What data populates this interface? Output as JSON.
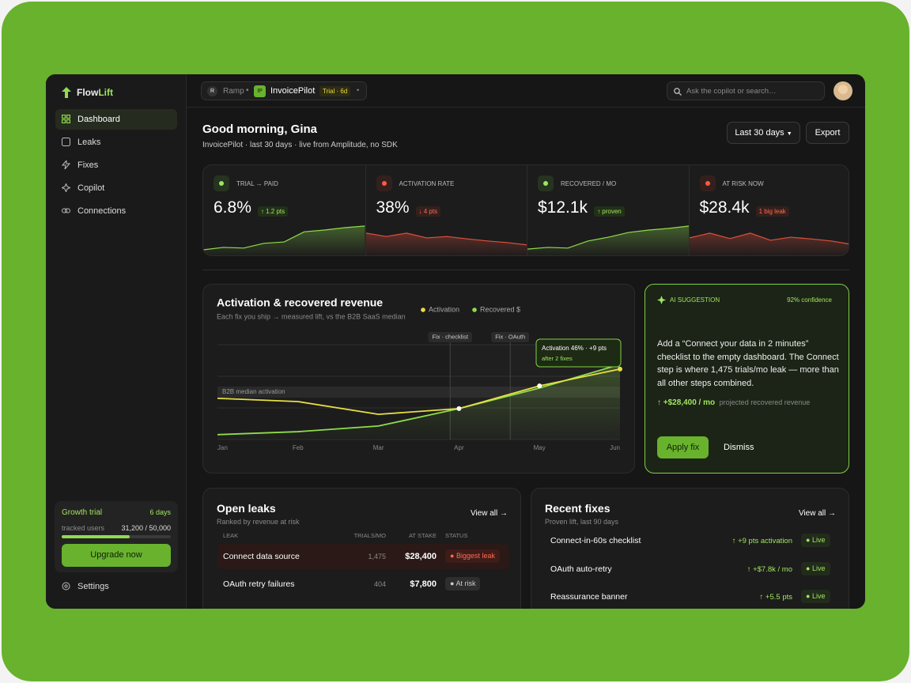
{
  "brand": {
    "name_a": "Flow",
    "name_b": "Lift"
  },
  "nav": [
    "Dashboard",
    "Leaks",
    "Fixes",
    "Copilot",
    "Connections"
  ],
  "trial": {
    "title": "Growth trial",
    "days": "6 days",
    "label": "tracked users",
    "usage": "31,200 / 50,000",
    "button": "Upgrade now"
  },
  "settings": "Settings",
  "topbar": {
    "org_initial": "R",
    "org": "Ramp",
    "app_initial": "IP",
    "app": "InvoicePilot",
    "trial_badge": "Trial · 6d",
    "search": "Ask the copilot or search…"
  },
  "header": {
    "greeting": "Good morning, Gina",
    "subtitle": "InvoicePilot · last 30 days · live from Amplitude, no SDK",
    "range": "Last 30 days",
    "export": "Export"
  },
  "kpi_scale": [
    0,
    10
  ],
  "kpis": [
    {
      "label": "TRIAL → PAID",
      "value": "6.8%",
      "delta": "↑ 1.2 pts",
      "trend": "up",
      "spark": [
        2.1,
        2.8,
        2.6,
        4,
        4.4,
        7.4,
        7.9,
        8.6,
        9.1
      ]
    },
    {
      "label": "ACTIVATION RATE",
      "value": "38%",
      "delta": "↓ 4 pts",
      "trend": "down",
      "spark": [
        7,
        6,
        7,
        5.6,
        6,
        5.3,
        4.7,
        4.2,
        3.5
      ]
    },
    {
      "label": "RECOVERED / MO",
      "value": "$12.1k",
      "delta": "↑ proven",
      "trend": "up",
      "spark": [
        2.3,
        2.8,
        2.6,
        4.7,
        5.8,
        7.2,
        7.9,
        8.4,
        9.1
      ]
    },
    {
      "label": "AT RISK NOW",
      "value": "$28.4k",
      "delta": "1 big leak",
      "trend": "down",
      "spark": [
        5.6,
        7,
        5.4,
        7,
        4.9,
        5.8,
        5.3,
        4.7,
        3.7
      ]
    }
  ],
  "chart_data": {
    "type": "line",
    "title": "Activation & recovered revenue",
    "subtitle": "Each fix you ship → measured lift, vs the B2B SaaS median",
    "categories": [
      "Jan",
      "Feb",
      "Mar",
      "Apr",
      "May",
      "Jun"
    ],
    "series": [
      {
        "name": "Activation",
        "color": "#e6de45",
        "values": [
          35.2,
          34,
          29.3,
          31.4,
          39.8,
          46
        ]
      },
      {
        "name": "Recovered $",
        "color": "#8fdc4c",
        "values": [
          21.8,
          22.9,
          25,
          31.4,
          39,
          47.7
        ]
      }
    ],
    "ylim": [
      20,
      55
    ],
    "median": 37.5,
    "median_label": "B2B median activation",
    "annotations": [
      "Fix · checklist",
      "Fix · OAuth"
    ],
    "tooltip": {
      "title": "Activation 46% · +9 pts",
      "note": "after 2 fixes"
    }
  },
  "suggestion": {
    "tag": "AI SUGGESTION",
    "confidence": "92% confidence",
    "body": "Add a “Connect your data in 2 minutes” checklist to the empty dashboard. The Connect step is where 1,475 trials/mo leak — more than all other steps combined.",
    "impact": "↑ +$28,400 / mo",
    "impact_note": "projected recovered revenue",
    "apply": "Apply fix",
    "dismiss": "Dismiss"
  },
  "leaks": {
    "title": "Open leaks",
    "subtitle": "Ranked by revenue at risk",
    "view_all": "View all →",
    "columns": [
      "LEAK",
      "TRIALS/MO",
      "AT STAKE",
      "STATUS"
    ],
    "rows": [
      [
        "Connect data source",
        "1,475",
        "$28,400",
        "Biggest leak"
      ],
      [
        "OAuth retry failures",
        "404",
        "$7,800",
        "At risk"
      ]
    ]
  },
  "fixes": {
    "title": "Recent fixes",
    "subtitle": "Proven lift, last 90 days",
    "view_all": "View all →",
    "rows": [
      [
        "Connect-in-60s checklist",
        "↑ +9 pts activation",
        "Live"
      ],
      [
        "OAuth auto-retry",
        "↑ +$7.8k / mo",
        "Live"
      ],
      [
        "Reassurance banner",
        "↑ +5.5 pts",
        "Live"
      ]
    ]
  }
}
